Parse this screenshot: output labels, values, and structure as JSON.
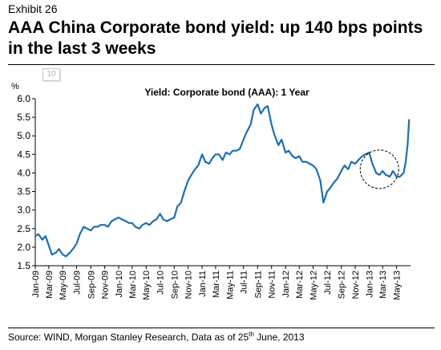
{
  "exhibit_label": "Exhibit 26",
  "headline": {
    "line1": "AAA China Corporate bond yield: up 140 bps points",
    "line2": "in the last 3 weeks"
  },
  "page_badge": "10",
  "source": {
    "text": "Source: WIND, Morgan Stanley Research, Data as of 25",
    "superscript": "th",
    "suffix": " June, 2013"
  },
  "chart_data": {
    "type": "line",
    "title": "Yield: Corporate bond (AAA): 1 Year",
    "ylabel": "%",
    "ylim": [
      1.5,
      6.0
    ],
    "yticks": [
      "1.5",
      "2.0",
      "2.5",
      "3.0",
      "3.5",
      "4.0",
      "4.5",
      "5.0",
      "5.5",
      "6.0"
    ],
    "xlim": [
      "2009-01-01",
      "2013-07-01"
    ],
    "xticks": [
      "Jan-09",
      "Mar-09",
      "May-09",
      "Jul-09",
      "Sep-09",
      "Nov-09",
      "Jan-10",
      "Mar-10",
      "May-10",
      "Jul-10",
      "Sep-10",
      "Nov-10",
      "Jan-11",
      "Mar-11",
      "May-11",
      "Jul-11",
      "Sep-11",
      "Nov-11",
      "Jan-12",
      "Mar-12",
      "May-12",
      "Jul-12",
      "Sep-12",
      "Nov-12",
      "Jan-13",
      "Mar-13",
      "May-13"
    ],
    "grid": false,
    "line_color": "#1f6fad",
    "annotation": {
      "shape": "dashed-circle",
      "x": "2013-02-15",
      "y": 4.1
    },
    "series": [
      {
        "x": [
          "2009-01-01",
          "2009-01-15",
          "2009-02-01",
          "2009-02-15",
          "2009-03-01",
          "2009-03-15",
          "2009-04-01",
          "2009-04-15",
          "2009-05-01",
          "2009-05-15",
          "2009-06-01",
          "2009-06-15",
          "2009-07-01",
          "2009-07-15",
          "2009-08-01",
          "2009-08-15",
          "2009-09-01",
          "2009-09-15",
          "2009-10-01",
          "2009-10-15",
          "2009-11-01",
          "2009-11-15",
          "2009-12-01",
          "2009-12-15",
          "2010-01-01",
          "2010-01-15",
          "2010-02-01",
          "2010-02-15",
          "2010-03-01",
          "2010-03-15",
          "2010-04-01",
          "2010-04-15",
          "2010-05-01",
          "2010-05-15",
          "2010-06-01",
          "2010-06-15",
          "2010-07-01",
          "2010-07-15",
          "2010-08-01",
          "2010-08-15",
          "2010-09-01",
          "2010-09-15",
          "2010-10-01",
          "2010-10-15",
          "2010-11-01",
          "2010-11-15",
          "2010-12-01",
          "2010-12-15",
          "2011-01-01",
          "2011-01-15",
          "2011-02-01",
          "2011-02-15",
          "2011-03-01",
          "2011-03-15",
          "2011-04-01",
          "2011-04-15",
          "2011-05-01",
          "2011-05-15",
          "2011-06-01",
          "2011-06-15",
          "2011-07-01",
          "2011-07-15",
          "2011-08-01",
          "2011-08-15",
          "2011-09-01",
          "2011-09-15",
          "2011-10-01",
          "2011-10-15",
          "2011-11-01",
          "2011-11-15",
          "2011-12-01",
          "2011-12-15",
          "2012-01-01",
          "2012-01-15",
          "2012-02-01",
          "2012-02-15",
          "2012-03-01",
          "2012-03-15",
          "2012-04-01",
          "2012-04-15",
          "2012-05-01",
          "2012-05-15",
          "2012-06-01",
          "2012-06-15",
          "2012-07-01",
          "2012-07-15",
          "2012-08-01",
          "2012-08-15",
          "2012-09-01",
          "2012-09-15",
          "2012-10-01",
          "2012-10-15",
          "2012-11-01",
          "2012-11-15",
          "2012-12-01",
          "2012-12-15",
          "2013-01-01",
          "2013-01-15",
          "2013-02-01",
          "2013-02-15",
          "2013-03-01",
          "2013-03-15",
          "2013-04-01",
          "2013-04-15",
          "2013-05-01",
          "2013-05-15",
          "2013-06-01",
          "2013-06-10",
          "2013-06-18",
          "2013-06-25"
        ],
        "values": [
          2.3,
          2.35,
          2.2,
          2.3,
          2.05,
          1.8,
          1.85,
          1.95,
          1.8,
          1.75,
          1.85,
          1.95,
          2.1,
          2.35,
          2.55,
          2.5,
          2.45,
          2.55,
          2.55,
          2.6,
          2.6,
          2.55,
          2.7,
          2.75,
          2.8,
          2.75,
          2.7,
          2.65,
          2.65,
          2.55,
          2.5,
          2.6,
          2.65,
          2.6,
          2.7,
          2.75,
          2.9,
          2.75,
          2.7,
          2.75,
          2.8,
          3.1,
          3.2,
          3.5,
          3.8,
          3.95,
          4.1,
          4.2,
          4.5,
          4.3,
          4.25,
          4.4,
          4.5,
          4.5,
          4.35,
          4.55,
          4.5,
          4.6,
          4.6,
          4.65,
          4.9,
          5.1,
          5.3,
          5.7,
          5.85,
          5.6,
          5.75,
          5.8,
          5.3,
          5.0,
          4.75,
          4.9,
          4.55,
          4.6,
          4.45,
          4.4,
          4.45,
          4.3,
          4.3,
          4.25,
          4.2,
          4.1,
          3.8,
          3.2,
          3.5,
          3.6,
          3.75,
          3.85,
          4.05,
          4.2,
          4.1,
          4.3,
          4.25,
          4.35,
          4.45,
          4.5,
          4.55,
          4.25,
          4.0,
          3.95,
          4.05,
          3.95,
          3.9,
          4.05,
          3.9,
          3.9,
          4.0,
          4.3,
          4.75,
          5.45
        ]
      }
    ]
  }
}
